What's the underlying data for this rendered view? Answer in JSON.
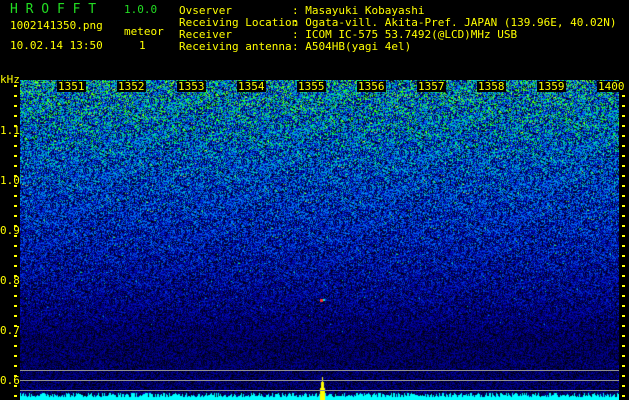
{
  "header": {
    "app_name": "H R O F F T",
    "version": "1.0.0",
    "filename": "1002141350.png",
    "datetime": "10.02.14 13:50",
    "meteor_label": "meteor",
    "meteor_count": "1"
  },
  "info": [
    {
      "label": "Ovserver",
      "value": ": Masayuki Kobayashi"
    },
    {
      "label": "Receiving Location",
      "value": ": Ogata-vill. Akita-Pref. JAPAN (139.96E, 40.02N)"
    },
    {
      "label": "Receiver",
      "value": ": ICOM IC-575 53.7492(@LCD)MHz USB"
    },
    {
      "label": "Receiving antenna",
      "value": ": A504HB(yagi 4el)"
    }
  ],
  "axis": {
    "y_unit": "kHz",
    "y_ticks": [
      "1.1",
      "1.0",
      "0.9",
      "0.8",
      "0.7",
      "0.6"
    ],
    "x_ticks": [
      "1351",
      "1352",
      "1353",
      "1354",
      "1355",
      "1356",
      "1357",
      "1358",
      "1359",
      "1400"
    ]
  },
  "colors": {
    "text": "#ffff00",
    "title": "#22dd22",
    "spectrum": "#00ffff",
    "peak": "#ffff00",
    "guide_lines": "#909090"
  }
}
